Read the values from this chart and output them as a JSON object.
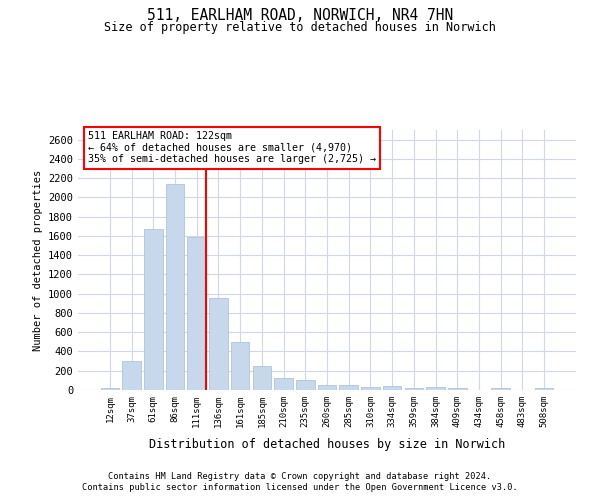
{
  "title": "511, EARLHAM ROAD, NORWICH, NR4 7HN",
  "subtitle": "Size of property relative to detached houses in Norwich",
  "xlabel": "Distribution of detached houses by size in Norwich",
  "ylabel": "Number of detached properties",
  "bar_color": "#c8d8ec",
  "bar_edgecolor": "#a8bcd0",
  "grid_color": "#d0d8e8",
  "annotation_text_line1": "511 EARLHAM ROAD: 122sqm",
  "annotation_text_line2": "← 64% of detached houses are smaller (4,970)",
  "annotation_text_line3": "35% of semi-detached houses are larger (2,725) →",
  "footer_line1": "Contains HM Land Registry data © Crown copyright and database right 2024.",
  "footer_line2": "Contains public sector information licensed under the Open Government Licence v3.0.",
  "categories": [
    "12sqm",
    "37sqm",
    "61sqm",
    "86sqm",
    "111sqm",
    "136sqm",
    "161sqm",
    "185sqm",
    "210sqm",
    "235sqm",
    "260sqm",
    "285sqm",
    "310sqm",
    "334sqm",
    "359sqm",
    "384sqm",
    "409sqm",
    "434sqm",
    "458sqm",
    "483sqm",
    "508sqm"
  ],
  "values": [
    25,
    300,
    1670,
    2140,
    1590,
    960,
    500,
    250,
    120,
    100,
    50,
    50,
    30,
    40,
    20,
    30,
    20,
    5,
    20,
    5,
    25
  ],
  "ylim": [
    0,
    2700
  ],
  "yticks": [
    0,
    200,
    400,
    600,
    800,
    1000,
    1200,
    1400,
    1600,
    1800,
    2000,
    2200,
    2400,
    2600
  ],
  "red_line_bin_index": 4,
  "figsize": [
    6.0,
    5.0
  ],
  "dpi": 100
}
